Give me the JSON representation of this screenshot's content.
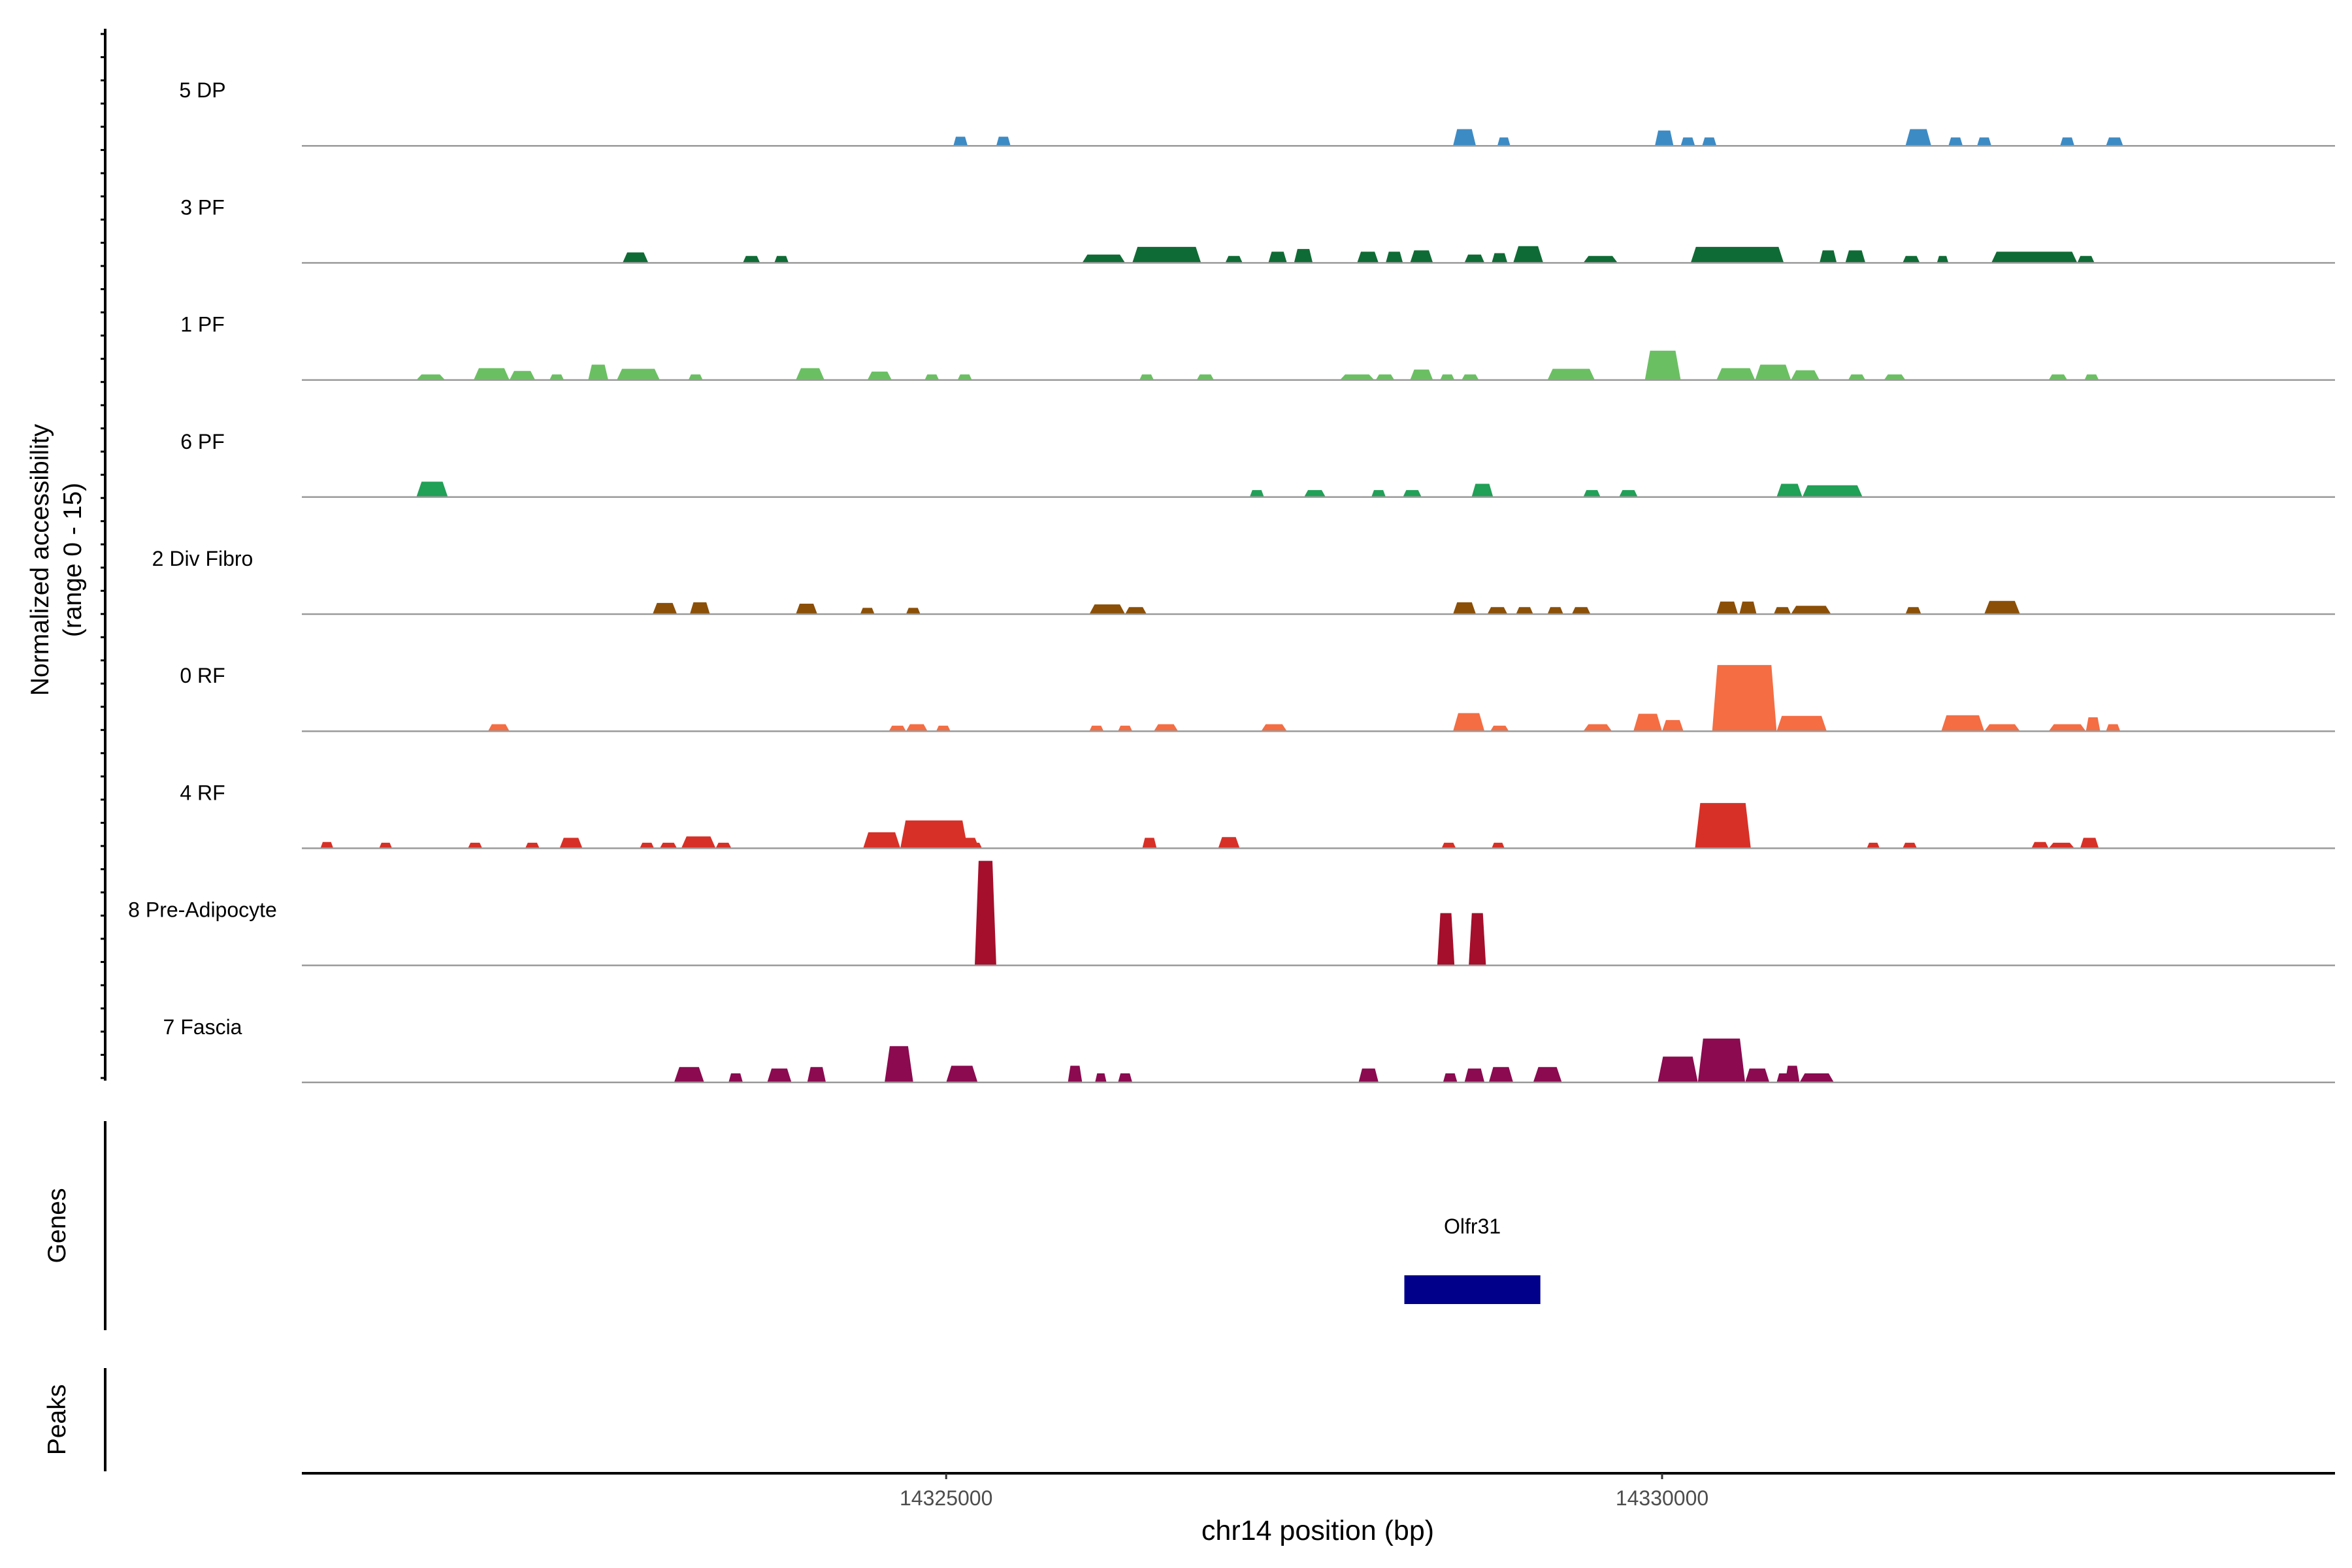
{
  "chart_data": {
    "type": "area",
    "region": {
      "chrom": "chr14",
      "start": 14320500,
      "end": 14334700
    },
    "ylabel": "Normalized accessibility",
    "ylabel_sub": "(range 0 - 15)",
    "ylim": [
      0,
      15
    ],
    "xlabel": "chr14 position (bp)",
    "xticks": [
      14325000,
      14330000
    ],
    "tick_labels": [
      "14325000",
      "14330000"
    ],
    "tracks": [
      {
        "name": "5 DP",
        "color": "#3D8BC5",
        "peaks": [
          {
            "start": 14325050,
            "end": 14325150,
            "height": 1.3
          },
          {
            "start": 14325350,
            "end": 14325450,
            "height": 1.3
          },
          {
            "start": 14328540,
            "end": 14328700,
            "height": 2.4
          },
          {
            "start": 14328850,
            "end": 14328940,
            "height": 1.2
          },
          {
            "start": 14329950,
            "end": 14330080,
            "height": 2.2
          },
          {
            "start": 14330130,
            "end": 14330230,
            "height": 1.2
          },
          {
            "start": 14330280,
            "end": 14330380,
            "height": 1.2
          },
          {
            "start": 14331700,
            "end": 14331880,
            "height": 2.4
          },
          {
            "start": 14332000,
            "end": 14332100,
            "height": 1.2
          },
          {
            "start": 14332200,
            "end": 14332300,
            "height": 1.2
          },
          {
            "start": 14332780,
            "end": 14332880,
            "height": 1.2
          },
          {
            "start": 14333100,
            "end": 14333220,
            "height": 1.2
          }
        ]
      },
      {
        "name": "3 PF",
        "color": "#0F6B35",
        "peaks": [
          {
            "start": 14322740,
            "end": 14322920,
            "height": 1.5
          },
          {
            "start": 14323580,
            "end": 14323700,
            "height": 1.0
          },
          {
            "start": 14323800,
            "end": 14323900,
            "height": 1.0
          },
          {
            "start": 14325950,
            "end": 14326250,
            "height": 1.2
          },
          {
            "start": 14326300,
            "end": 14326780,
            "height": 2.3
          },
          {
            "start": 14326950,
            "end": 14327070,
            "height": 1.0
          },
          {
            "start": 14327250,
            "end": 14327380,
            "height": 1.6
          },
          {
            "start": 14327430,
            "end": 14327560,
            "height": 2.0
          },
          {
            "start": 14327870,
            "end": 14328020,
            "height": 1.6
          },
          {
            "start": 14328070,
            "end": 14328190,
            "height": 1.6
          },
          {
            "start": 14328240,
            "end": 14328400,
            "height": 1.8
          },
          {
            "start": 14328620,
            "end": 14328760,
            "height": 1.2
          },
          {
            "start": 14328810,
            "end": 14328920,
            "height": 1.4
          },
          {
            "start": 14328960,
            "end": 14329170,
            "height": 2.4
          },
          {
            "start": 14329450,
            "end": 14329690,
            "height": 1.0
          },
          {
            "start": 14330200,
            "end": 14330850,
            "height": 2.3
          },
          {
            "start": 14331100,
            "end": 14331220,
            "height": 1.8
          },
          {
            "start": 14331280,
            "end": 14331420,
            "height": 1.8
          },
          {
            "start": 14331680,
            "end": 14331800,
            "height": 1.0
          },
          {
            "start": 14331920,
            "end": 14332000,
            "height": 1.0
          },
          {
            "start": 14332300,
            "end": 14332900,
            "height": 1.6
          },
          {
            "start": 14332900,
            "end": 14333020,
            "height": 1.0
          }
        ]
      },
      {
        "name": "1 PF",
        "color": "#6BBF63",
        "peaks": [
          {
            "start": 14321300,
            "end": 14321500,
            "height": 0.8
          },
          {
            "start": 14321700,
            "end": 14321950,
            "height": 1.7
          },
          {
            "start": 14321950,
            "end": 14322130,
            "height": 1.3
          },
          {
            "start": 14322230,
            "end": 14322330,
            "height": 0.8
          },
          {
            "start": 14322500,
            "end": 14322640,
            "height": 2.2
          },
          {
            "start": 14322700,
            "end": 14323000,
            "height": 1.6
          },
          {
            "start": 14323200,
            "end": 14323300,
            "height": 0.8
          },
          {
            "start": 14323950,
            "end": 14324150,
            "height": 1.7
          },
          {
            "start": 14324450,
            "end": 14324620,
            "height": 1.2
          },
          {
            "start": 14324850,
            "end": 14324950,
            "height": 0.8
          },
          {
            "start": 14325080,
            "end": 14325180,
            "height": 0.8
          },
          {
            "start": 14326350,
            "end": 14326450,
            "height": 0.8
          },
          {
            "start": 14326750,
            "end": 14326870,
            "height": 0.8
          },
          {
            "start": 14327750,
            "end": 14327990,
            "height": 0.8
          },
          {
            "start": 14328000,
            "end": 14328130,
            "height": 0.8
          },
          {
            "start": 14328240,
            "end": 14328400,
            "height": 1.5
          },
          {
            "start": 14328450,
            "end": 14328550,
            "height": 0.8
          },
          {
            "start": 14328600,
            "end": 14328720,
            "height": 0.8
          },
          {
            "start": 14329200,
            "end": 14329530,
            "height": 1.6
          },
          {
            "start": 14329880,
            "end": 14330130,
            "height": 4.2
          },
          {
            "start": 14330380,
            "end": 14330650,
            "height": 1.7
          },
          {
            "start": 14330650,
            "end": 14330900,
            "height": 2.2
          },
          {
            "start": 14330900,
            "end": 14331100,
            "height": 1.4
          },
          {
            "start": 14331300,
            "end": 14331420,
            "height": 0.8
          },
          {
            "start": 14331550,
            "end": 14331700,
            "height": 0.8
          },
          {
            "start": 14332700,
            "end": 14332830,
            "height": 0.8
          },
          {
            "start": 14332950,
            "end": 14333050,
            "height": 0.8
          }
        ]
      },
      {
        "name": "6 PF",
        "color": "#21A057",
        "peaks": [
          {
            "start": 14321300,
            "end": 14321520,
            "height": 2.2
          },
          {
            "start": 14327120,
            "end": 14327220,
            "height": 1.0
          },
          {
            "start": 14327500,
            "end": 14327650,
            "height": 1.0
          },
          {
            "start": 14327970,
            "end": 14328070,
            "height": 1.0
          },
          {
            "start": 14328190,
            "end": 14328320,
            "height": 1.0
          },
          {
            "start": 14328670,
            "end": 14328820,
            "height": 1.9
          },
          {
            "start": 14329450,
            "end": 14329570,
            "height": 1.0
          },
          {
            "start": 14329700,
            "end": 14329830,
            "height": 1.0
          },
          {
            "start": 14330800,
            "end": 14330980,
            "height": 1.9
          },
          {
            "start": 14330980,
            "end": 14331400,
            "height": 1.7
          }
        ]
      },
      {
        "name": "2 Div Fibro",
        "color": "#8B4F07",
        "peaks": [
          {
            "start": 14322950,
            "end": 14323120,
            "height": 1.6
          },
          {
            "start": 14323210,
            "end": 14323350,
            "height": 1.7
          },
          {
            "start": 14323950,
            "end": 14324100,
            "height": 1.5
          },
          {
            "start": 14324400,
            "end": 14324500,
            "height": 0.9
          },
          {
            "start": 14324720,
            "end": 14324820,
            "height": 0.9
          },
          {
            "start": 14326000,
            "end": 14326250,
            "height": 1.4
          },
          {
            "start": 14326250,
            "end": 14326400,
            "height": 1.0
          },
          {
            "start": 14328540,
            "end": 14328700,
            "height": 1.7
          },
          {
            "start": 14328780,
            "end": 14328920,
            "height": 1.0
          },
          {
            "start": 14328980,
            "end": 14329100,
            "height": 1.0
          },
          {
            "start": 14329200,
            "end": 14329310,
            "height": 1.0
          },
          {
            "start": 14329370,
            "end": 14329500,
            "height": 1.0
          },
          {
            "start": 14330380,
            "end": 14330530,
            "height": 1.8
          },
          {
            "start": 14330540,
            "end": 14330660,
            "height": 1.8
          },
          {
            "start": 14330780,
            "end": 14330900,
            "height": 1.0
          },
          {
            "start": 14330900,
            "end": 14331180,
            "height": 1.2
          },
          {
            "start": 14331700,
            "end": 14331810,
            "height": 1.0
          },
          {
            "start": 14332250,
            "end": 14332500,
            "height": 1.9
          }
        ]
      },
      {
        "name": "0 RF",
        "color": "#F46D43",
        "peaks": [
          {
            "start": 14321800,
            "end": 14321950,
            "height": 1.0
          },
          {
            "start": 14324600,
            "end": 14324720,
            "height": 0.8
          },
          {
            "start": 14324720,
            "end": 14324870,
            "height": 1.0
          },
          {
            "start": 14324930,
            "end": 14325030,
            "height": 0.8
          },
          {
            "start": 14326000,
            "end": 14326100,
            "height": 0.8
          },
          {
            "start": 14326200,
            "end": 14326300,
            "height": 0.8
          },
          {
            "start": 14326450,
            "end": 14326620,
            "height": 1.0
          },
          {
            "start": 14327200,
            "end": 14327380,
            "height": 1.0
          },
          {
            "start": 14328540,
            "end": 14328760,
            "height": 2.6
          },
          {
            "start": 14328800,
            "end": 14328930,
            "height": 0.8
          },
          {
            "start": 14329450,
            "end": 14329650,
            "height": 1.0
          },
          {
            "start": 14329800,
            "end": 14330000,
            "height": 2.5
          },
          {
            "start": 14330000,
            "end": 14330150,
            "height": 1.6
          },
          {
            "start": 14330350,
            "end": 14330800,
            "height": 9.5
          },
          {
            "start": 14330800,
            "end": 14331150,
            "height": 2.2
          },
          {
            "start": 14331950,
            "end": 14332250,
            "height": 2.3
          },
          {
            "start": 14332250,
            "end": 14332500,
            "height": 1.0
          },
          {
            "start": 14332700,
            "end": 14332960,
            "height": 1.0
          },
          {
            "start": 14332960,
            "end": 14333060,
            "height": 2.0
          },
          {
            "start": 14333100,
            "end": 14333200,
            "height": 1.0
          }
        ]
      },
      {
        "name": "4 RF",
        "color": "#D73027",
        "peaks": [
          {
            "start": 14320630,
            "end": 14320720,
            "height": 0.9
          },
          {
            "start": 14321040,
            "end": 14321130,
            "height": 0.8
          },
          {
            "start": 14321660,
            "end": 14321760,
            "height": 0.8
          },
          {
            "start": 14322060,
            "end": 14322160,
            "height": 0.8
          },
          {
            "start": 14322300,
            "end": 14322460,
            "height": 1.5
          },
          {
            "start": 14322860,
            "end": 14322960,
            "height": 0.8
          },
          {
            "start": 14323000,
            "end": 14323120,
            "height": 0.8
          },
          {
            "start": 14323150,
            "end": 14323390,
            "height": 1.7
          },
          {
            "start": 14323390,
            "end": 14323500,
            "height": 0.8
          },
          {
            "start": 14324420,
            "end": 14324680,
            "height": 2.3
          },
          {
            "start": 14324680,
            "end": 14325150,
            "height": 4.0
          },
          {
            "start": 14325150,
            "end": 14325250,
            "height": 0.8
          },
          {
            "start": 14325070,
            "end": 14325230,
            "height": 1.5
          },
          {
            "start": 14326370,
            "end": 14326470,
            "height": 1.5
          },
          {
            "start": 14326900,
            "end": 14327050,
            "height": 1.6
          },
          {
            "start": 14328460,
            "end": 14328560,
            "height": 0.8
          },
          {
            "start": 14328810,
            "end": 14328900,
            "height": 0.8
          },
          {
            "start": 14330230,
            "end": 14330620,
            "height": 6.5
          },
          {
            "start": 14331430,
            "end": 14331520,
            "height": 0.8
          },
          {
            "start": 14331680,
            "end": 14331780,
            "height": 0.8
          },
          {
            "start": 14332580,
            "end": 14332700,
            "height": 0.9
          },
          {
            "start": 14332700,
            "end": 14332880,
            "height": 0.8
          },
          {
            "start": 14332920,
            "end": 14333050,
            "height": 1.5
          }
        ]
      },
      {
        "name": "8 Pre-Adipocyte",
        "color": "#A50F2B",
        "peaks": [
          {
            "start": 14325200,
            "end": 14325350,
            "height": 15.0
          },
          {
            "start": 14328430,
            "end": 14328550,
            "height": 7.5
          },
          {
            "start": 14328650,
            "end": 14328770,
            "height": 7.5
          }
        ]
      },
      {
        "name": "7 Fascia",
        "color": "#8B0A50",
        "peaks": [
          {
            "start": 14323100,
            "end": 14323310,
            "height": 2.2
          },
          {
            "start": 14323480,
            "end": 14323580,
            "height": 1.3
          },
          {
            "start": 14323750,
            "end": 14323920,
            "height": 2.0
          },
          {
            "start": 14324030,
            "end": 14324160,
            "height": 2.2
          },
          {
            "start": 14324570,
            "end": 14324770,
            "height": 5.2
          },
          {
            "start": 14325000,
            "end": 14325220,
            "height": 2.4
          },
          {
            "start": 14325850,
            "end": 14325950,
            "height": 2.4
          },
          {
            "start": 14326040,
            "end": 14326120,
            "height": 1.3
          },
          {
            "start": 14326200,
            "end": 14326300,
            "height": 1.3
          },
          {
            "start": 14327880,
            "end": 14328020,
            "height": 2.0
          },
          {
            "start": 14328470,
            "end": 14328570,
            "height": 1.3
          },
          {
            "start": 14328620,
            "end": 14328760,
            "height": 2.0
          },
          {
            "start": 14328790,
            "end": 14328960,
            "height": 2.2
          },
          {
            "start": 14329100,
            "end": 14329300,
            "height": 2.2
          },
          {
            "start": 14329970,
            "end": 14330250,
            "height": 3.7
          },
          {
            "start": 14330250,
            "end": 14330580,
            "height": 6.3
          },
          {
            "start": 14330580,
            "end": 14330750,
            "height": 2.0
          },
          {
            "start": 14330800,
            "end": 14330900,
            "height": 1.3
          },
          {
            "start": 14330860,
            "end": 14330960,
            "height": 2.4
          },
          {
            "start": 14330960,
            "end": 14331200,
            "height": 1.3
          }
        ]
      }
    ],
    "genes": {
      "label": "Genes",
      "items": [
        {
          "name": "Olfr31",
          "start": 14328200,
          "end": 14329150,
          "color": "#00008B"
        }
      ]
    },
    "peaks_track": {
      "label": "Peaks",
      "items": []
    },
    "grid": false
  }
}
